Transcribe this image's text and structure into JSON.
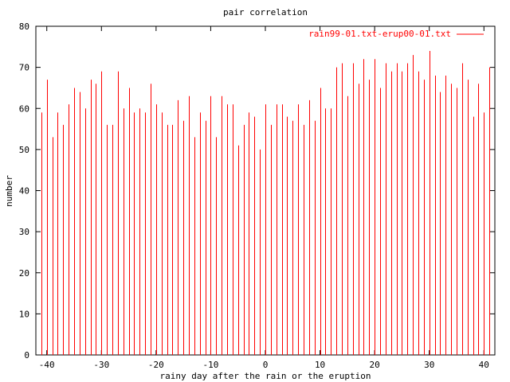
{
  "chart_data": {
    "type": "bar",
    "title": "pair correlation",
    "xlabel": "rainy day after the rain or the eruption",
    "ylabel": "number",
    "xlim": [
      -42,
      42
    ],
    "ylim": [
      0,
      80
    ],
    "xticks": [
      -40,
      -30,
      -20,
      -10,
      0,
      10,
      20,
      30,
      40
    ],
    "yticks": [
      0,
      10,
      20,
      30,
      40,
      50,
      60,
      70,
      80
    ],
    "legend_position": "top-right",
    "series": [
      {
        "name": "rain99-01.txt-erup00-01.txt",
        "color": "#ff0000",
        "x": [
          -41,
          -40,
          -39,
          -38,
          -37,
          -36,
          -35,
          -34,
          -33,
          -32,
          -31,
          -30,
          -29,
          -28,
          -27,
          -26,
          -25,
          -24,
          -23,
          -22,
          -21,
          -20,
          -19,
          -18,
          -17,
          -16,
          -15,
          -14,
          -13,
          -12,
          -11,
          -10,
          -9,
          -8,
          -7,
          -6,
          -5,
          -4,
          -3,
          -2,
          -1,
          0,
          1,
          2,
          3,
          4,
          5,
          6,
          7,
          8,
          9,
          10,
          11,
          12,
          13,
          14,
          15,
          16,
          17,
          18,
          19,
          20,
          21,
          22,
          23,
          24,
          25,
          26,
          27,
          28,
          29,
          30,
          31,
          32,
          33,
          34,
          35,
          36,
          37,
          38,
          39,
          40,
          41
        ],
        "values": [
          59,
          67,
          53,
          59,
          56,
          61,
          65,
          64,
          60,
          67,
          66,
          69,
          56,
          56,
          69,
          60,
          65,
          59,
          60,
          59,
          66,
          61,
          59,
          56,
          56,
          62,
          57,
          63,
          53,
          59,
          57,
          63,
          53,
          63,
          61,
          61,
          51,
          56,
          59,
          58,
          50,
          61,
          56,
          61,
          61,
          58,
          57,
          61,
          56,
          62,
          57,
          65,
          60,
          60,
          70,
          71,
          63,
          71,
          66,
          72,
          67,
          72,
          65,
          71,
          69,
          71,
          69,
          71,
          73,
          69,
          67,
          74,
          68,
          64,
          68,
          66,
          65,
          71,
          67,
          58,
          66,
          59,
          70
        ]
      }
    ]
  }
}
